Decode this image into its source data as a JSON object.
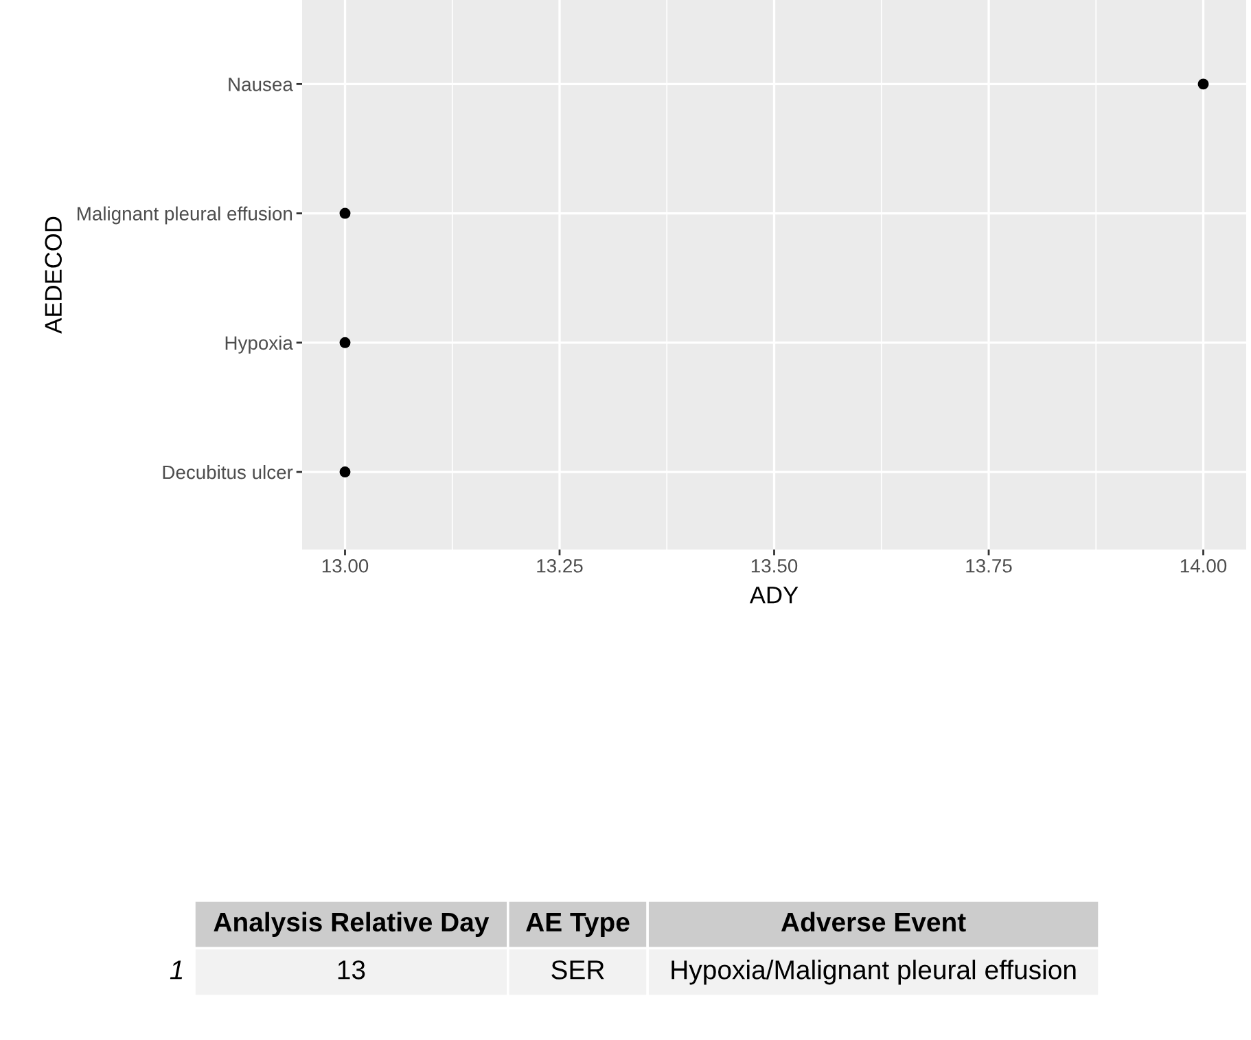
{
  "chart_data": {
    "type": "scatter",
    "orientation": "horizontal",
    "xlabel": "ADY",
    "ylabel": "AEDECOD",
    "categories": [
      "Nausea",
      "Malignant pleural effusion",
      "Hypoxia",
      "Decubitus ulcer"
    ],
    "series": [
      {
        "color": "#000000",
        "values": [
          14,
          13,
          13,
          13
        ]
      }
    ],
    "xlim": [
      12.95,
      14.05
    ],
    "xticks": [
      {
        "value": 13,
        "label": "13.00"
      },
      {
        "value": 13.25,
        "label": "13.25"
      },
      {
        "value": 13.5,
        "label": "13.50"
      },
      {
        "value": 13.75,
        "label": "13.75"
      },
      {
        "value": 14,
        "label": "14.00"
      }
    ],
    "grid": true,
    "marker": "circle",
    "annotations": [
      "Analysis Relative Day",
      "AE Type",
      "Adverse Event",
      "1",
      "13",
      "SER",
      "Hypoxia/Malignant pleural effusion"
    ]
  }
}
